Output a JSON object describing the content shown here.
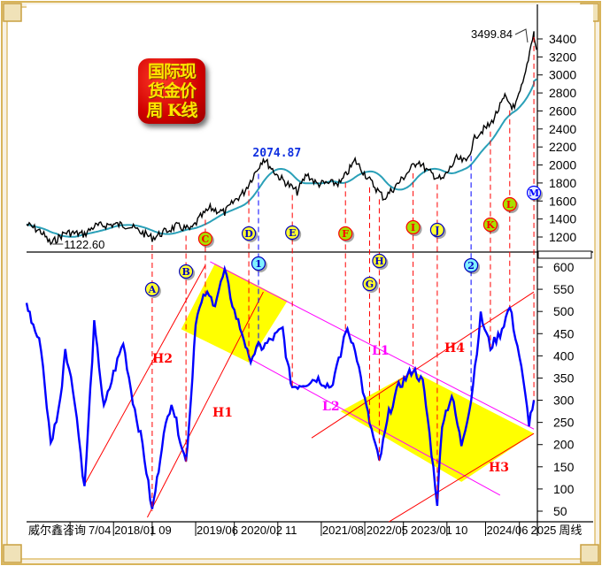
{
  "chart_data": {
    "type": "line",
    "title_logo": [
      "国际现",
      "货金价",
      "周 K线"
    ],
    "source_label": "威尔鑫咨询",
    "period_label": "周线",
    "colors": {
      "price": "#000000",
      "ma": "#2aa0b8",
      "oscillator": "#0000ff",
      "channel_red": "#ff0000",
      "channel_magenta": "#ff00ff",
      "highlight": "#ffff00"
    },
    "x_ticks": [
      "7/04",
      "2018/01",
      "09",
      "2019/06",
      "2020/02",
      "11",
      "2021/08",
      "2022/05",
      "2023/01",
      "10",
      "2024/06",
      "2025"
    ],
    "x_tick_dates": [
      "2017-04",
      "2018-01",
      "2018-09",
      "2019-06",
      "2020-02",
      "2020-11",
      "2021-08",
      "2022-05",
      "2023-01",
      "2023-10",
      "2024-06",
      "2025-01"
    ],
    "x_range": [
      "2016-07",
      "2025-04"
    ],
    "upper": {
      "y_ticks": [
        1200,
        1400,
        1600,
        1800,
        2000,
        2200,
        2400,
        2600,
        2800,
        3000,
        3200,
        3400
      ],
      "ylim": [
        1200,
        3400
      ],
      "annotations": [
        {
          "text": "1122.60",
          "date": "2016-12",
          "value": 1122.6
        },
        {
          "text": "2074.87",
          "date": "2020-08",
          "value": 2074.87
        },
        {
          "text": "3499.84",
          "date": "2025-04",
          "value": 3499.84
        }
      ],
      "price": [
        [
          "2016-07",
          1340
        ],
        [
          "2016-10",
          1260
        ],
        [
          "2016-12",
          1125
        ],
        [
          "2017-03",
          1250
        ],
        [
          "2017-07",
          1230
        ],
        [
          "2017-09",
          1320
        ],
        [
          "2018-01",
          1340
        ],
        [
          "2018-04",
          1330
        ],
        [
          "2018-09",
          1190
        ],
        [
          "2019-02",
          1320
        ],
        [
          "2019-05",
          1280
        ],
        [
          "2019-07",
          1420
        ],
        [
          "2019-09",
          1520
        ],
        [
          "2019-12",
          1470
        ],
        [
          "2020-02",
          1600
        ],
        [
          "2020-04",
          1700
        ],
        [
          "2020-08",
          2074.87
        ],
        [
          "2020-11",
          1880
        ],
        [
          "2021-03",
          1700
        ],
        [
          "2021-05",
          1900
        ],
        [
          "2021-07",
          1790
        ],
        [
          "2021-12",
          1800
        ],
        [
          "2022-03",
          2050
        ],
        [
          "2022-06",
          1830
        ],
        [
          "2022-09",
          1630
        ],
        [
          "2022-12",
          1800
        ],
        [
          "2023-04",
          2050
        ],
        [
          "2023-06",
          1930
        ],
        [
          "2023-09",
          1830
        ],
        [
          "2023-12",
          2070
        ],
        [
          "2024-02",
          2030
        ],
        [
          "2024-04",
          2330
        ],
        [
          "2024-07",
          2450
        ],
        [
          "2024-09",
          2650
        ],
        [
          "2024-10",
          2750
        ],
        [
          "2024-12",
          2620
        ],
        [
          "2025-02",
          2950
        ],
        [
          "2025-04",
          3499.84
        ],
        [
          "2025-04",
          3300
        ]
      ]
    },
    "lower": {
      "y_ticks": [
        50,
        100,
        150,
        200,
        250,
        300,
        350,
        400,
        450,
        500,
        550,
        600
      ],
      "ylim": [
        25,
        625
      ],
      "oscillator": [
        [
          "2016-07",
          520
        ],
        [
          "2016-08",
          480
        ],
        [
          "2016-10",
          420
        ],
        [
          "2016-12",
          200
        ],
        [
          "2017-02",
          300
        ],
        [
          "2017-03",
          420
        ],
        [
          "2017-05",
          300
        ],
        [
          "2017-07",
          100
        ],
        [
          "2017-09",
          470
        ],
        [
          "2017-10",
          380
        ],
        [
          "2017-11",
          280
        ],
        [
          "2018-01",
          360
        ],
        [
          "2018-03",
          430
        ],
        [
          "2018-05",
          300
        ],
        [
          "2018-07",
          200
        ],
        [
          "2018-09",
          50
        ],
        [
          "2018-10",
          120
        ],
        [
          "2018-11",
          200
        ],
        [
          "2019-01",
          300
        ],
        [
          "2019-02",
          250
        ],
        [
          "2019-04",
          160
        ],
        [
          "2019-05",
          300
        ],
        [
          "2019-06",
          480
        ],
        [
          "2019-08",
          540
        ],
        [
          "2019-10",
          520
        ],
        [
          "2019-12",
          590
        ],
        [
          "2020-02",
          500
        ],
        [
          "2020-04",
          440
        ],
        [
          "2020-05",
          390
        ],
        [
          "2020-07",
          420
        ],
        [
          "2020-08",
          420
        ],
        [
          "2020-10",
          440
        ],
        [
          "2020-12",
          460
        ],
        [
          "2021-01",
          380
        ],
        [
          "2021-02",
          330
        ],
        [
          "2021-05",
          340
        ],
        [
          "2021-07",
          350
        ],
        [
          "2021-10",
          330
        ],
        [
          "2021-12",
          400
        ],
        [
          "2022-01",
          460
        ],
        [
          "2022-03",
          420
        ],
        [
          "2022-05",
          300
        ],
        [
          "2022-06",
          250
        ],
        [
          "2022-08",
          160
        ],
        [
          "2022-10",
          270
        ],
        [
          "2022-12",
          330
        ],
        [
          "2023-03",
          370
        ],
        [
          "2023-05",
          340
        ],
        [
          "2023-06",
          260
        ],
        [
          "2023-08",
          70
        ],
        [
          "2023-09",
          250
        ],
        [
          "2023-11",
          310
        ],
        [
          "2024-01",
          200
        ],
        [
          "2024-03",
          300
        ],
        [
          "2024-05",
          490
        ],
        [
          "2024-07",
          420
        ],
        [
          "2024-09",
          450
        ],
        [
          "2024-11",
          510
        ],
        [
          "2025-01",
          400
        ],
        [
          "2025-03",
          250
        ],
        [
          "2025-04",
          300
        ]
      ],
      "channels": [
        {
          "name": "H2",
          "color": "#ff0000",
          "from": [
            "2017-07",
            110
          ],
          "to": [
            "2019-08",
            604
          ]
        },
        {
          "name": "H1",
          "color": "#ff0000",
          "from": [
            "2018-08",
            36
          ],
          "to": [
            "2020-08",
            544
          ]
        },
        {
          "name": "L1",
          "color": "#ff00ff",
          "from": [
            "2019-09",
            612
          ],
          "to": [
            "2025-04",
            235
          ]
        },
        {
          "name": "L2",
          "color": "#ff00ff",
          "from": [
            "2020-05",
            395
          ],
          "to": [
            "2024-09",
            86
          ]
        },
        {
          "name": "H4",
          "color": "#ff0000",
          "from": [
            "2021-06",
            215
          ],
          "to": [
            "2025-04",
            544
          ]
        },
        {
          "name": "H3",
          "color": "#ff0000",
          "from": [
            "2022-10",
            26
          ],
          "to": [
            "2025-04",
            225
          ]
        }
      ],
      "highlight_zones": [
        [
          [
            "2019-03",
            460
          ],
          [
            "2019-10",
            608
          ],
          [
            "2021-01",
            524
          ],
          [
            "2020-05",
            385
          ]
        ],
        [
          [
            "2021-12",
            275
          ],
          [
            "2023-03",
            365
          ],
          [
            "2025-04",
            225
          ],
          [
            "2024-01",
            116
          ]
        ]
      ]
    },
    "markers": [
      {
        "label": "A",
        "date": "2018-09",
        "style": "yellow"
      },
      {
        "label": "B",
        "date": "2019-04",
        "style": "yellow"
      },
      {
        "label": "C",
        "date": "2019-08",
        "style": "green"
      },
      {
        "label": "D",
        "date": "2020-05",
        "style": "yellow"
      },
      {
        "label": "1",
        "date": "2020-07",
        "style": "cyan"
      },
      {
        "label": "E",
        "date": "2021-02",
        "style": "yellow"
      },
      {
        "label": "F",
        "date": "2022-01",
        "style": "green"
      },
      {
        "label": "G",
        "date": "2022-06",
        "style": "yellow"
      },
      {
        "label": "H",
        "date": "2022-08",
        "style": "yellow"
      },
      {
        "label": "I",
        "date": "2023-03",
        "style": "green"
      },
      {
        "label": "J",
        "date": "2023-08",
        "style": "yellow"
      },
      {
        "label": "2",
        "date": "2024-03",
        "style": "cyan"
      },
      {
        "label": "K",
        "date": "2024-07",
        "style": "green"
      },
      {
        "label": "L",
        "date": "2024-11",
        "style": "green"
      },
      {
        "label": "M",
        "date": "2025-04",
        "style": "white"
      }
    ]
  }
}
